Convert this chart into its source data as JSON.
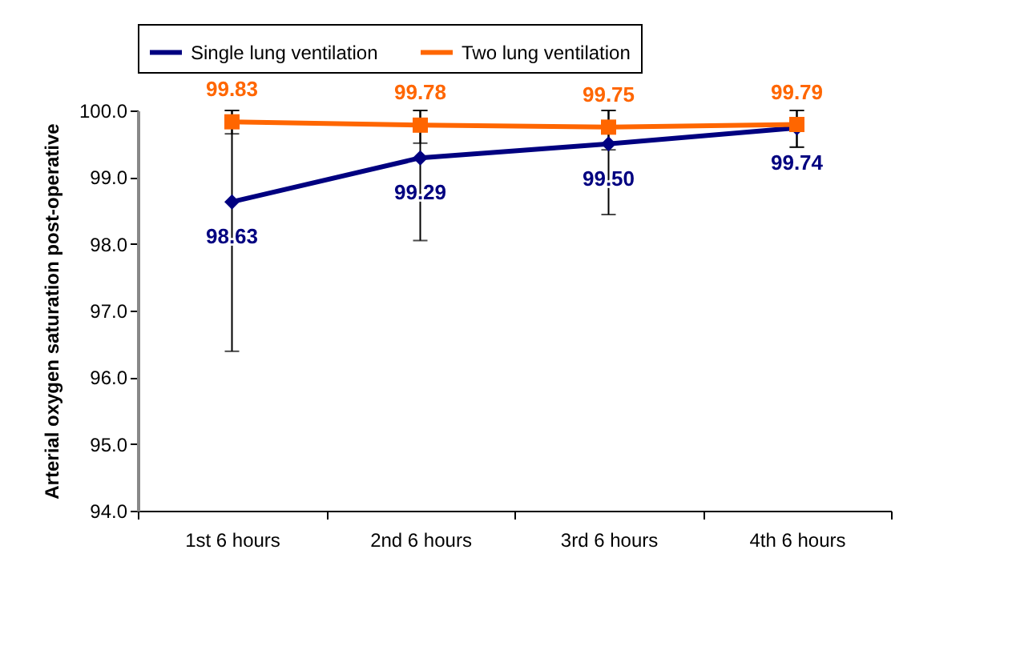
{
  "chart_data": {
    "type": "line",
    "ylabel": "Arterial oxygen saturation post-operative",
    "categories": [
      "1st 6 hours",
      "2nd 6 hours",
      "3rd 6 hours",
      "4th 6 hours"
    ],
    "series": [
      {
        "name": "Single lung ventilation",
        "color": "#000080",
        "marker": "diamond",
        "values": [
          98.63,
          99.29,
          99.5,
          99.74
        ],
        "value_labels": [
          "98.63",
          "99.29",
          "99.50",
          "99.74"
        ],
        "errors": [
          [
            96.39,
            100.0
          ],
          [
            98.05,
            100.0
          ],
          [
            98.44,
            100.0
          ],
          [
            99.45,
            100.0
          ]
        ]
      },
      {
        "name": "Two lung ventilation",
        "color": "#ff6600",
        "marker": "square",
        "values": [
          99.83,
          99.78,
          99.75,
          99.79
        ],
        "value_labels": [
          "99.83",
          "99.78",
          "99.75",
          "99.79"
        ],
        "errors": [
          [
            99.65,
            100.0
          ],
          [
            99.51,
            100.0
          ],
          [
            99.41,
            100.0
          ],
          [
            99.45,
            100.0
          ]
        ]
      }
    ],
    "ylim": [
      94.0,
      100.0
    ],
    "yticks": [
      {
        "value": 94,
        "label": "94.0"
      },
      {
        "value": 95,
        "label": "95.0"
      },
      {
        "value": 96,
        "label": "96.0"
      },
      {
        "value": 97,
        "label": "97.0"
      },
      {
        "value": 98,
        "label": "98.0"
      },
      {
        "value": 99,
        "label": "99.0"
      },
      {
        "value": 100,
        "label": "100.0"
      }
    ],
    "legend": "top",
    "grid": false,
    "line_style": "solid"
  }
}
